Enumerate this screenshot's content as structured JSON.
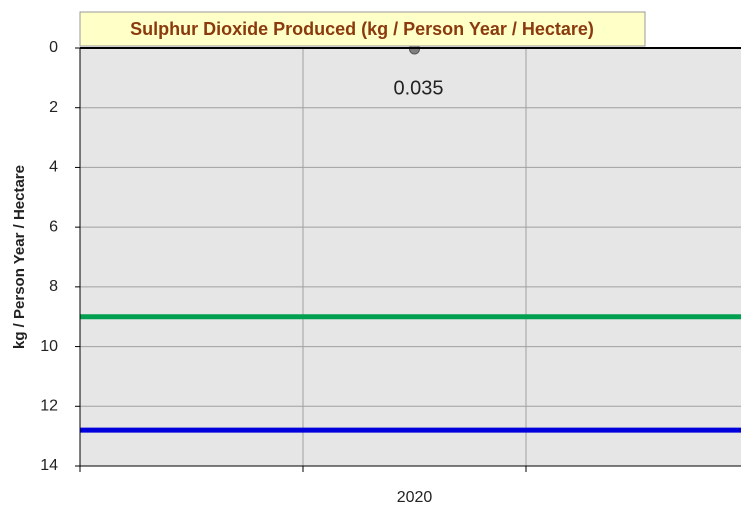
{
  "chart_data": {
    "type": "scatter",
    "title": "Sulphur Dioxide Produced (kg / Person Year / Hectare)",
    "y_label": "kg / Person Year / Hectare",
    "categories": [
      null,
      "2020",
      null
    ],
    "series": [
      {
        "color": "#808080",
        "values": [
          null,
          0.035,
          null
        ]
      }
    ],
    "reference_lines": [
      {
        "value": 9,
        "color": "#00a050"
      },
      {
        "value": 12.8,
        "color": "#0000dd"
      }
    ],
    "ylim": [
      0,
      14
    ],
    "yticks": [
      0,
      2,
      4,
      6,
      8,
      10,
      12,
      14
    ],
    "y_inverted": true,
    "grid": true
  }
}
